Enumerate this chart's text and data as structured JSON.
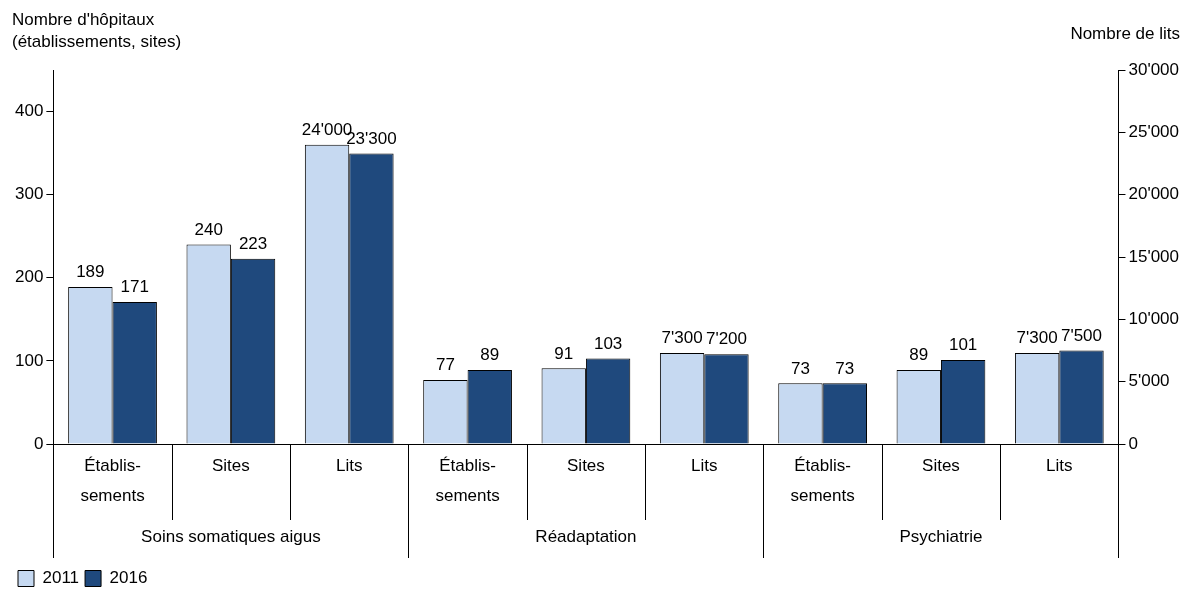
{
  "chart_data": {
    "type": "bar",
    "ylabel": "Nombre d'hôpitaux\n(établissements, sites)",
    "y2label": "Nombre de lits",
    "categories": [
      "Établis-sements",
      "Sites",
      "Lits",
      "Établis-sements",
      "Sites",
      "Lits",
      "Établis-sements",
      "Sites",
      "Lits"
    ],
    "annotations": [
      "Soins somatiques aigus",
      "Réadaptation",
      "Psychiatrie"
    ],
    "series": [
      {
        "name": "2011",
        "color": "#c6d9f1",
        "values": [
          189,
          240,
          null,
          77,
          91,
          null,
          73,
          89,
          null
        ],
        "value_labels": [
          "189",
          "240",
          null,
          "77",
          "91",
          null,
          "73",
          "89",
          null
        ]
      },
      {
        "name": "2016",
        "color": "#1f497d",
        "values": [
          171,
          223,
          null,
          89,
          103,
          null,
          73,
          101,
          null
        ],
        "value_labels": [
          "171",
          "223",
          null,
          "89",
          "103",
          null,
          "73",
          "101",
          null
        ]
      },
      {
        "color": "#c6d9f1",
        "axis": "y2",
        "values": [
          null,
          null,
          24000,
          null,
          null,
          7300,
          null,
          null,
          7300
        ],
        "value_labels": [
          null,
          null,
          "24'000",
          null,
          null,
          "7'300",
          null,
          null,
          "7'300"
        ]
      },
      {
        "color": "#1f497d",
        "axis": "y2",
        "values": [
          null,
          null,
          23300,
          null,
          null,
          7200,
          null,
          null,
          7500
        ],
        "value_labels": [
          null,
          null,
          "23'300",
          null,
          null,
          "7'200",
          null,
          null,
          "7'500"
        ]
      }
    ],
    "ylim": [
      0,
      450
    ],
    "yticks": [
      0,
      100,
      200,
      300,
      400
    ],
    "y2lim": [
      0,
      30000
    ],
    "y2ticks": [
      0,
      {
        "value": 5000,
        "label": "5'000"
      },
      {
        "value": 10000,
        "label": "10'000"
      },
      {
        "value": 15000,
        "label": "15'000"
      },
      {
        "value": 20000,
        "label": "20'000"
      },
      {
        "value": 25000,
        "label": "25'000"
      },
      {
        "value": 30000,
        "label": "30'000"
      }
    ],
    "grid": false,
    "legend": "bottom left"
  }
}
